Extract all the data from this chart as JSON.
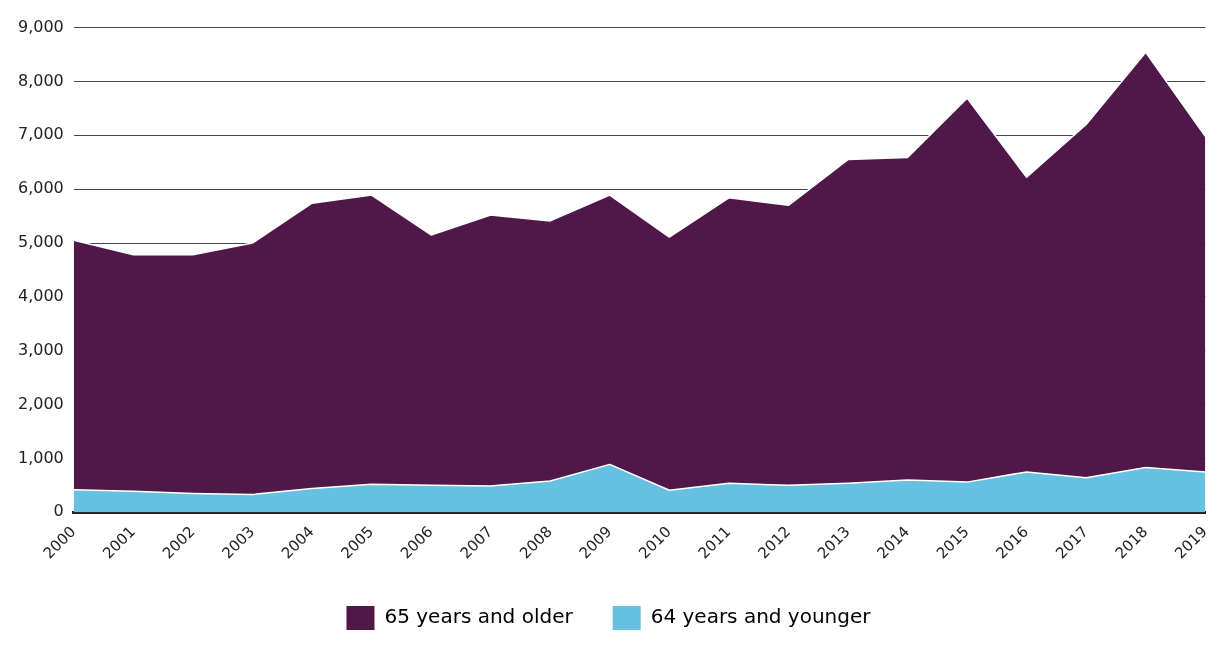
{
  "chart_data": {
    "type": "area",
    "stacked": true,
    "categories": [
      "2000",
      "2001",
      "2002",
      "2003",
      "2004",
      "2005",
      "2006",
      "2007",
      "2008",
      "2009",
      "2010",
      "2011",
      "2012",
      "2013",
      "2014",
      "2015",
      "2016",
      "2017",
      "2018",
      "2019"
    ],
    "series": [
      {
        "name": "64 years and younger",
        "color": "#65c0e2",
        "values": [
          420,
          390,
          350,
          330,
          440,
          520,
          500,
          490,
          580,
          890,
          410,
          540,
          500,
          540,
          600,
          560,
          750,
          640,
          830,
          750
        ]
      },
      {
        "name": "65 years and older",
        "color": "#4f1848",
        "values": [
          4630,
          4390,
          4430,
          4670,
          5300,
          5370,
          4650,
          5030,
          4830,
          5000,
          4700,
          5300,
          5200,
          6010,
          5990,
          7130,
          5470,
          6560,
          7710,
          6230
        ]
      }
    ],
    "ylim": [
      0,
      9000
    ],
    "yticks": [
      0,
      {
        "value": 1000,
        "label": "1,000"
      },
      {
        "value": 2000,
        "label": "2,000"
      },
      {
        "value": 3000,
        "label": "3,000"
      },
      {
        "value": 4000,
        "label": "4,000"
      },
      {
        "value": 5000,
        "label": "5,000"
      },
      {
        "value": 6000,
        "label": "6,000"
      },
      {
        "value": 7000,
        "label": "7,000"
      },
      {
        "value": 8000,
        "label": "8,000"
      },
      {
        "value": 9000,
        "label": "9,000"
      }
    ],
    "grid": "y",
    "legend": "bottom"
  }
}
